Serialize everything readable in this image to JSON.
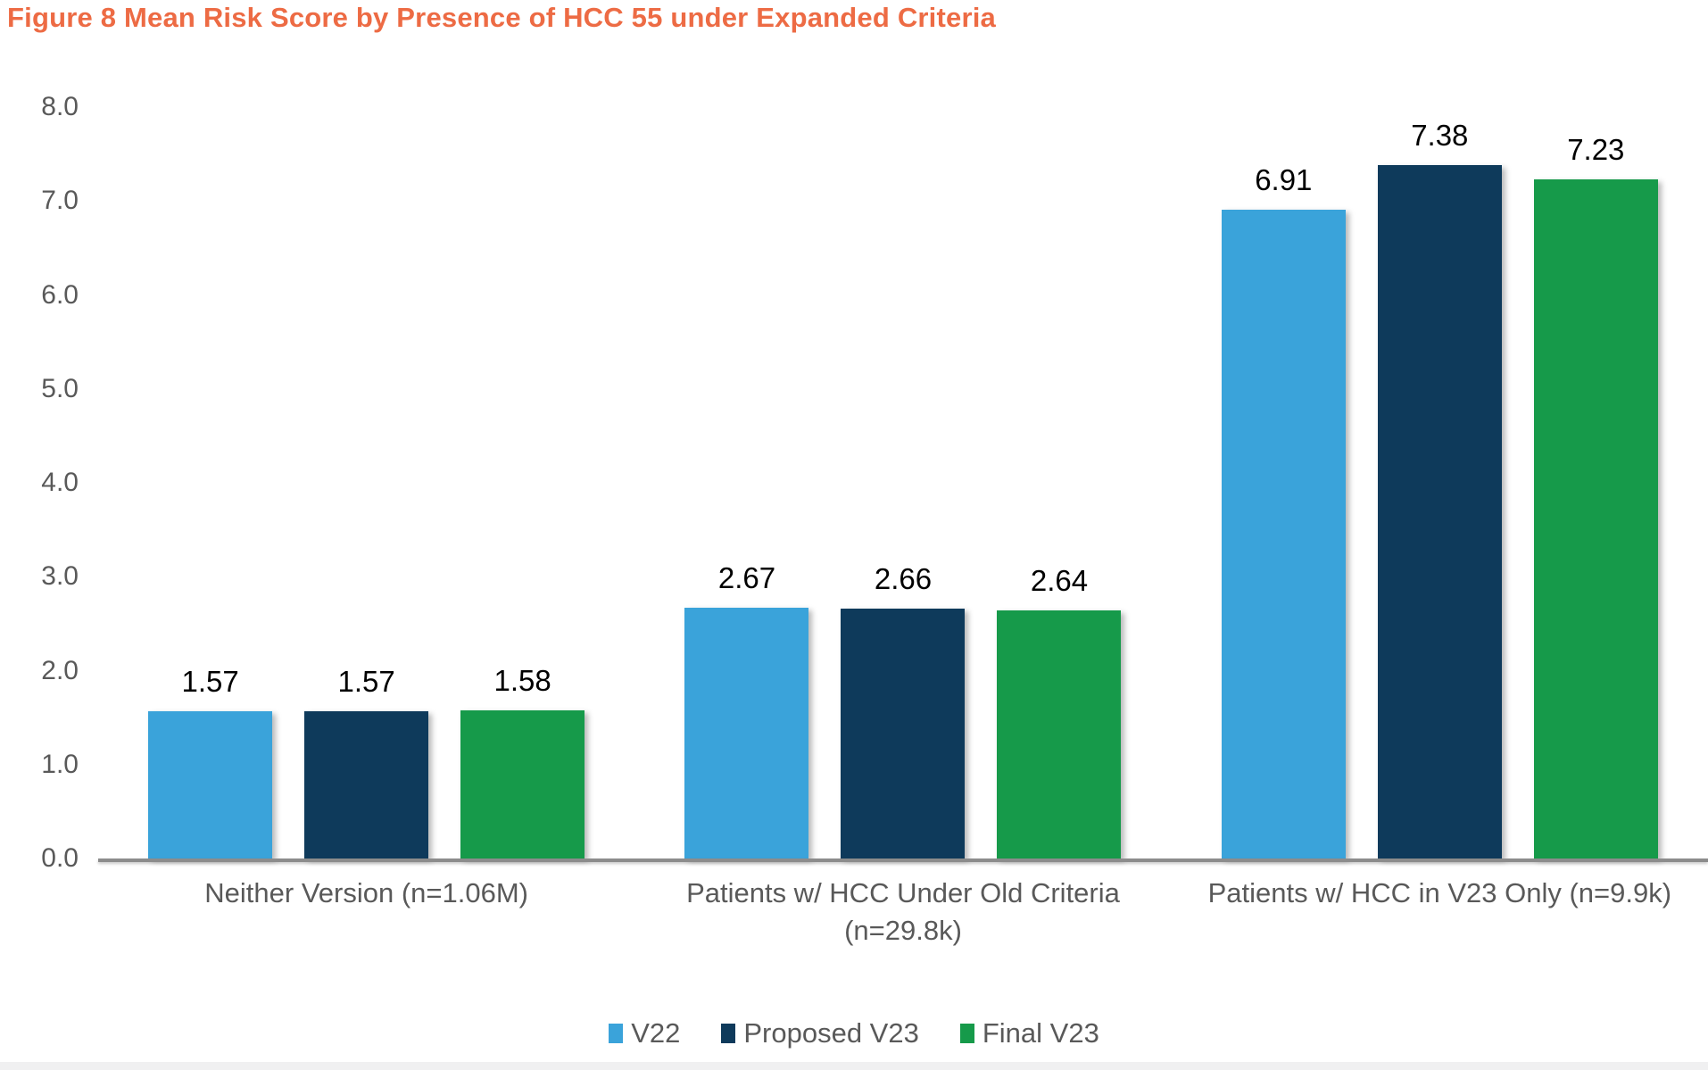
{
  "title": "Figure 8 Mean Risk Score by Presence of HCC 55 under Expanded Criteria",
  "colors": {
    "title_text": "#ED6B44",
    "axis_line": "#8C8C8C",
    "tick_text": "#595959",
    "category_text": "#595959",
    "legend_text": "#595959",
    "data_label_text": "#000000",
    "footer_band": "#F0F0F1"
  },
  "chart_data": {
    "type": "bar",
    "title": "Figure 8 Mean Risk Score by Presence of HCC 55 under Expanded Criteria",
    "categories": [
      "Neither Version (n=1.06M)",
      "Patients w/ HCC Under Old Criteria (n=29.8k)",
      "Patients w/ HCC in V23 Only (n=9.9k)"
    ],
    "series": [
      {
        "name": "V22",
        "color": "#3AA3DA",
        "values": [
          1.57,
          2.67,
          6.91
        ]
      },
      {
        "name": "Proposed V23",
        "color": "#0E3A5B",
        "values": [
          1.57,
          2.66,
          7.38
        ]
      },
      {
        "name": "Final V23",
        "color": "#169A4A",
        "values": [
          1.58,
          2.64,
          7.23
        ]
      }
    ],
    "data_labels": [
      [
        "1.57",
        "1.57",
        "1.58"
      ],
      [
        "2.67",
        "2.66",
        "2.64"
      ],
      [
        "6.91",
        "7.38",
        "7.23"
      ]
    ],
    "xlabel": "",
    "ylabel": "",
    "ylim": [
      0,
      8
    ],
    "y_ticks": [
      "8.0",
      "7.0",
      "6.0",
      "5.0",
      "4.0",
      "3.0",
      "2.0",
      "1.0",
      "0.0"
    ],
    "grid": false,
    "legend_position": "bottom"
  }
}
